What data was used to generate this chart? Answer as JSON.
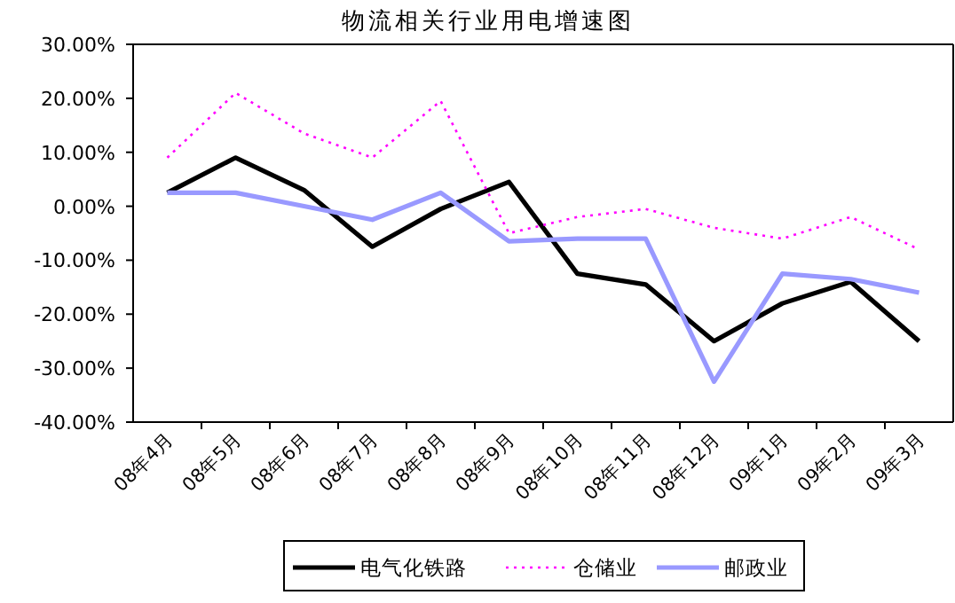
{
  "chart_data": {
    "type": "line",
    "title": "物流相关行业用电增速图",
    "categories": [
      "08年4月",
      "08年5月",
      "08年6月",
      "08年7月",
      "08年8月",
      "08年9月",
      "08年10月",
      "08年11月",
      "08年12月",
      "09年1月",
      "09年2月",
      "09年3月"
    ],
    "series": [
      {
        "name": "电气化铁路",
        "color": "#000000",
        "line_style": "solid",
        "values": [
          2.5,
          9,
          3,
          -7.5,
          -0.5,
          4.5,
          -12.5,
          -14.5,
          -25,
          -18,
          -14,
          -25
        ]
      },
      {
        "name": "仓储业",
        "color": "#ff00ff",
        "line_style": "dotted",
        "values": [
          9,
          21,
          13.5,
          9,
          19.5,
          -5,
          -2,
          -0.5,
          -4,
          -6,
          -2,
          -8
        ]
      },
      {
        "name": "邮政业",
        "color": "#9999ff",
        "line_style": "solid",
        "values": [
          2.5,
          2.5,
          0,
          -2.5,
          2.5,
          -6.5,
          -6,
          -6,
          -32.5,
          -12.5,
          -13.5,
          -16
        ]
      }
    ],
    "ylim": [
      -40,
      30
    ],
    "yticks": [
      {
        "value": 30,
        "label": "30.00%"
      },
      {
        "value": 20,
        "label": "20.00%"
      },
      {
        "value": 10,
        "label": "10.00%"
      },
      {
        "value": 0,
        "label": "0.00%"
      },
      {
        "value": -10,
        "label": "-10.00%"
      },
      {
        "value": -20,
        "label": "-20.00%"
      },
      {
        "value": -30,
        "label": "-30.00%"
      },
      {
        "value": -40,
        "label": "-40.00%"
      }
    ],
    "legend": "bottom",
    "grid": false
  }
}
